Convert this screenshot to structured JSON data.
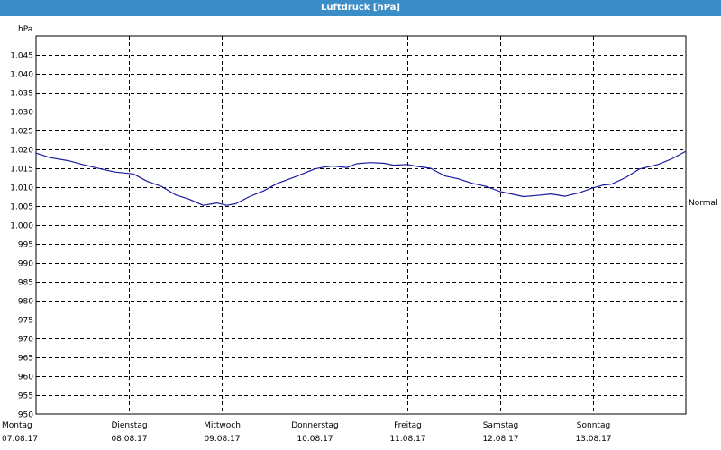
{
  "window": {
    "title": "Luftdruck [hPa]"
  },
  "chart_data": {
    "type": "line",
    "title": "Luftdruck [hPa]",
    "ylabel": "hPa",
    "xlabel": "",
    "ylim": [
      950,
      1050
    ],
    "yticks": [
      950,
      955,
      960,
      965,
      970,
      975,
      980,
      985,
      990,
      995,
      1000,
      1005,
      1010,
      1015,
      1020,
      1025,
      1030,
      1035,
      1040,
      1045
    ],
    "ytick_labels": [
      "950",
      "955",
      "960",
      "965",
      "970",
      "975",
      "980",
      "985",
      "990",
      "995",
      "1.000",
      "1.005",
      "1.010",
      "1.015",
      "1.020",
      "1.025",
      "1.030",
      "1.035",
      "1.040",
      "1.045"
    ],
    "xlim": [
      0,
      7
    ],
    "xticks": [
      {
        "day": "Montag",
        "date": "07.08.17",
        "x": 0
      },
      {
        "day": "Dienstag",
        "date": "08.08.17",
        "x": 1
      },
      {
        "day": "Mittwoch",
        "date": "09.08.17",
        "x": 2
      },
      {
        "day": "Donnerstag",
        "date": "10.08.17",
        "x": 3
      },
      {
        "day": "Freitag",
        "date": "11.08.17",
        "x": 4
      },
      {
        "day": "Samstag",
        "date": "12.08.17",
        "x": 5
      },
      {
        "day": "Sonntag",
        "date": "13.08.17",
        "x": 6
      }
    ],
    "reference_line": {
      "label": "Normal",
      "value": 1006
    },
    "grid": true,
    "series": [
      {
        "color": "#1a1aa0",
        "x": [
          0,
          0.15,
          0.35,
          0.5,
          0.7,
          0.85,
          1.05,
          1.2,
          1.35,
          1.5,
          1.65,
          1.8,
          1.95,
          2.05,
          2.15,
          2.3,
          2.45,
          2.6,
          2.8,
          3.0,
          3.1,
          3.2,
          3.35,
          3.45,
          3.6,
          3.75,
          3.85,
          4.0,
          4.1,
          4.25,
          4.4,
          4.55,
          4.7,
          4.85,
          5.0,
          5.1,
          5.25,
          5.4,
          5.55,
          5.7,
          5.85,
          6.0,
          6.1,
          6.2,
          6.35,
          6.5,
          6.7,
          6.85,
          7.0
        ],
        "y": [
          1019.0,
          1017.8,
          1017.0,
          1016.0,
          1014.8,
          1014.0,
          1013.5,
          1011.5,
          1010.2,
          1008.0,
          1006.8,
          1005.2,
          1005.8,
          1005.2,
          1005.6,
          1007.5,
          1009.0,
          1011.0,
          1012.8,
          1014.8,
          1015.3,
          1015.6,
          1015.2,
          1016.2,
          1016.5,
          1016.3,
          1015.8,
          1016.0,
          1015.5,
          1015.0,
          1013.0,
          1012.2,
          1011.0,
          1010.2,
          1008.8,
          1008.3,
          1007.5,
          1007.8,
          1008.2,
          1007.6,
          1008.5,
          1009.8,
          1010.5,
          1010.8,
          1012.5,
          1014.8,
          1016.0,
          1017.5,
          1019.5
        ]
      }
    ]
  }
}
